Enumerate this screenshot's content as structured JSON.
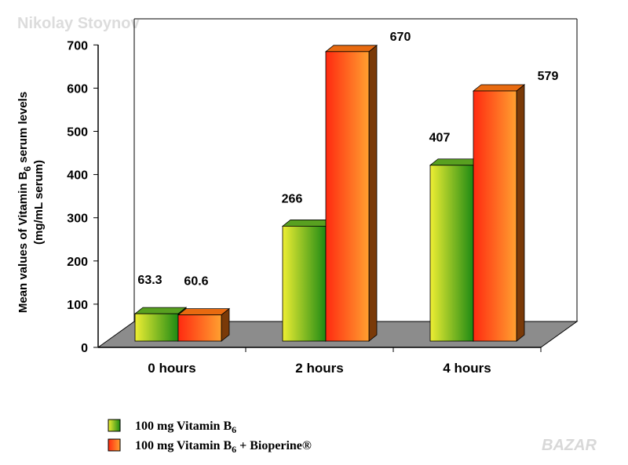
{
  "watermark_top": "Nikolay Stoynov",
  "watermark_bottom": "BAZAR",
  "chart_data": {
    "type": "bar",
    "categories": [
      "0 hours",
      "2 hours",
      "4 hours"
    ],
    "series": [
      {
        "name": "100 mg Vitamin B6",
        "values": [
          63.3,
          266,
          407
        ],
        "value_labels": [
          "63.3",
          "266",
          "407"
        ],
        "colors": {
          "light": "#eeee33",
          "dark": "#1e8a14",
          "top": "#58a020",
          "side": "#1a5a0c"
        }
      },
      {
        "name": "100 mg Vitamin B6 + Bioperine®",
        "values": [
          60.6,
          670,
          579
        ],
        "value_labels": [
          "60.6",
          "670",
          "579"
        ],
        "colors": {
          "light": "#ff2a10",
          "dark": "#ffa030",
          "top": "#e86a10",
          "side": "#7a3a08"
        }
      }
    ],
    "ylabel_line1": "Mean values of Vitamin B",
    "ylabel_sub": "6",
    "ylabel_line1_end": " serum levels",
    "ylabel_line2": "(mg/mL serum)",
    "ylim": [
      0,
      700
    ],
    "yticks": [
      "0",
      "100",
      "200",
      "300",
      "400",
      "500",
      "600",
      "700"
    ],
    "legend_position": "bottom-left",
    "grid": false,
    "style": "3d"
  },
  "legend": [
    {
      "text": "100 mg Vitamin B",
      "sub": "6",
      "suffix": ""
    },
    {
      "text": "100 mg Vitamin B",
      "sub": "6",
      "suffix": " + Bioperine®"
    }
  ]
}
